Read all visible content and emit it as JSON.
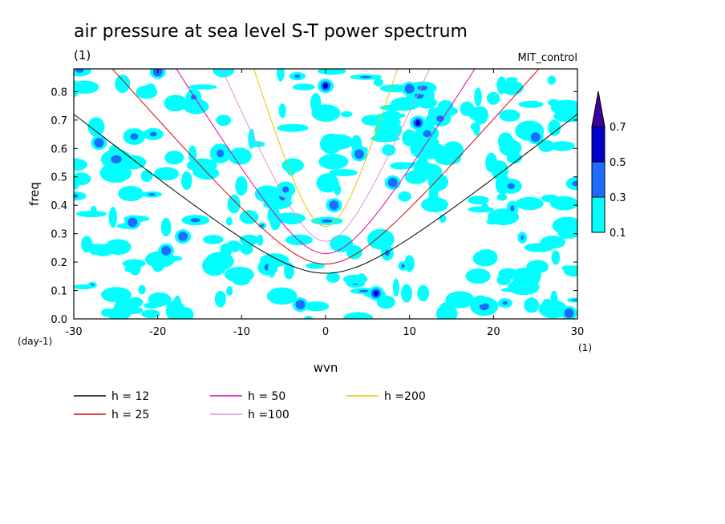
{
  "chart_data": {
    "type": "heatmap",
    "title": "air pressure at sea level S-T power spectrum",
    "subtitle_left": "(1)",
    "subtitle_right": "MIT_control",
    "xlabel": "wvn",
    "ylabel": "freq",
    "x_unit": "(1)",
    "y_unit": "(day-1)",
    "xlim": [
      -30,
      30
    ],
    "ylim": [
      0,
      0.88
    ],
    "x_ticks": [
      "-30",
      "-20",
      "-10",
      "0",
      "10",
      "20",
      "30"
    ],
    "y_ticks": [
      "0.0",
      "0.1",
      "0.2",
      "0.3",
      "0.4",
      "0.5",
      "0.6",
      "0.7",
      "0.8"
    ],
    "colorbar": {
      "levels": [
        "0.1",
        "0.3",
        "0.5",
        "0.7"
      ],
      "colors": [
        "#00ffff",
        "#1e6cff",
        "#0000cc",
        "#3d0099"
      ]
    },
    "dispersion_curves": [
      {
        "name": "h = 12",
        "h": 12,
        "color": "#000000"
      },
      {
        "name": "h = 25",
        "h": 25,
        "color": "#e00000"
      },
      {
        "name": "h = 50",
        "h": 50,
        "color": "#e000b0"
      },
      {
        "name": "h =100",
        "h": 100,
        "color": "#e090e0"
      },
      {
        "name": "h =200",
        "h": 200,
        "color": "#f0c000"
      }
    ],
    "hotspots": [
      {
        "x": 6,
        "y": 0.09,
        "level": 3
      },
      {
        "x": 0,
        "y": 0.82,
        "level": 3
      },
      {
        "x": 11,
        "y": 0.69,
        "level": 3
      },
      {
        "x": 1,
        "y": 0.4,
        "level": 2
      },
      {
        "x": 4,
        "y": 0.58,
        "level": 2
      },
      {
        "x": 8,
        "y": 0.48,
        "level": 2
      },
      {
        "x": 10,
        "y": 0.81,
        "level": 2
      },
      {
        "x": -20,
        "y": 0.87,
        "level": 2
      },
      {
        "x": -27,
        "y": 0.62,
        "level": 2
      },
      {
        "x": -17,
        "y": 0.29,
        "level": 2
      },
      {
        "x": -19,
        "y": 0.24,
        "level": 2
      },
      {
        "x": -23,
        "y": 0.34,
        "level": 2
      },
      {
        "x": -3,
        "y": 0.05,
        "level": 2
      },
      {
        "x": 25,
        "y": 0.64,
        "level": 2
      },
      {
        "x": 29,
        "y": 0.02,
        "level": 2
      }
    ]
  }
}
